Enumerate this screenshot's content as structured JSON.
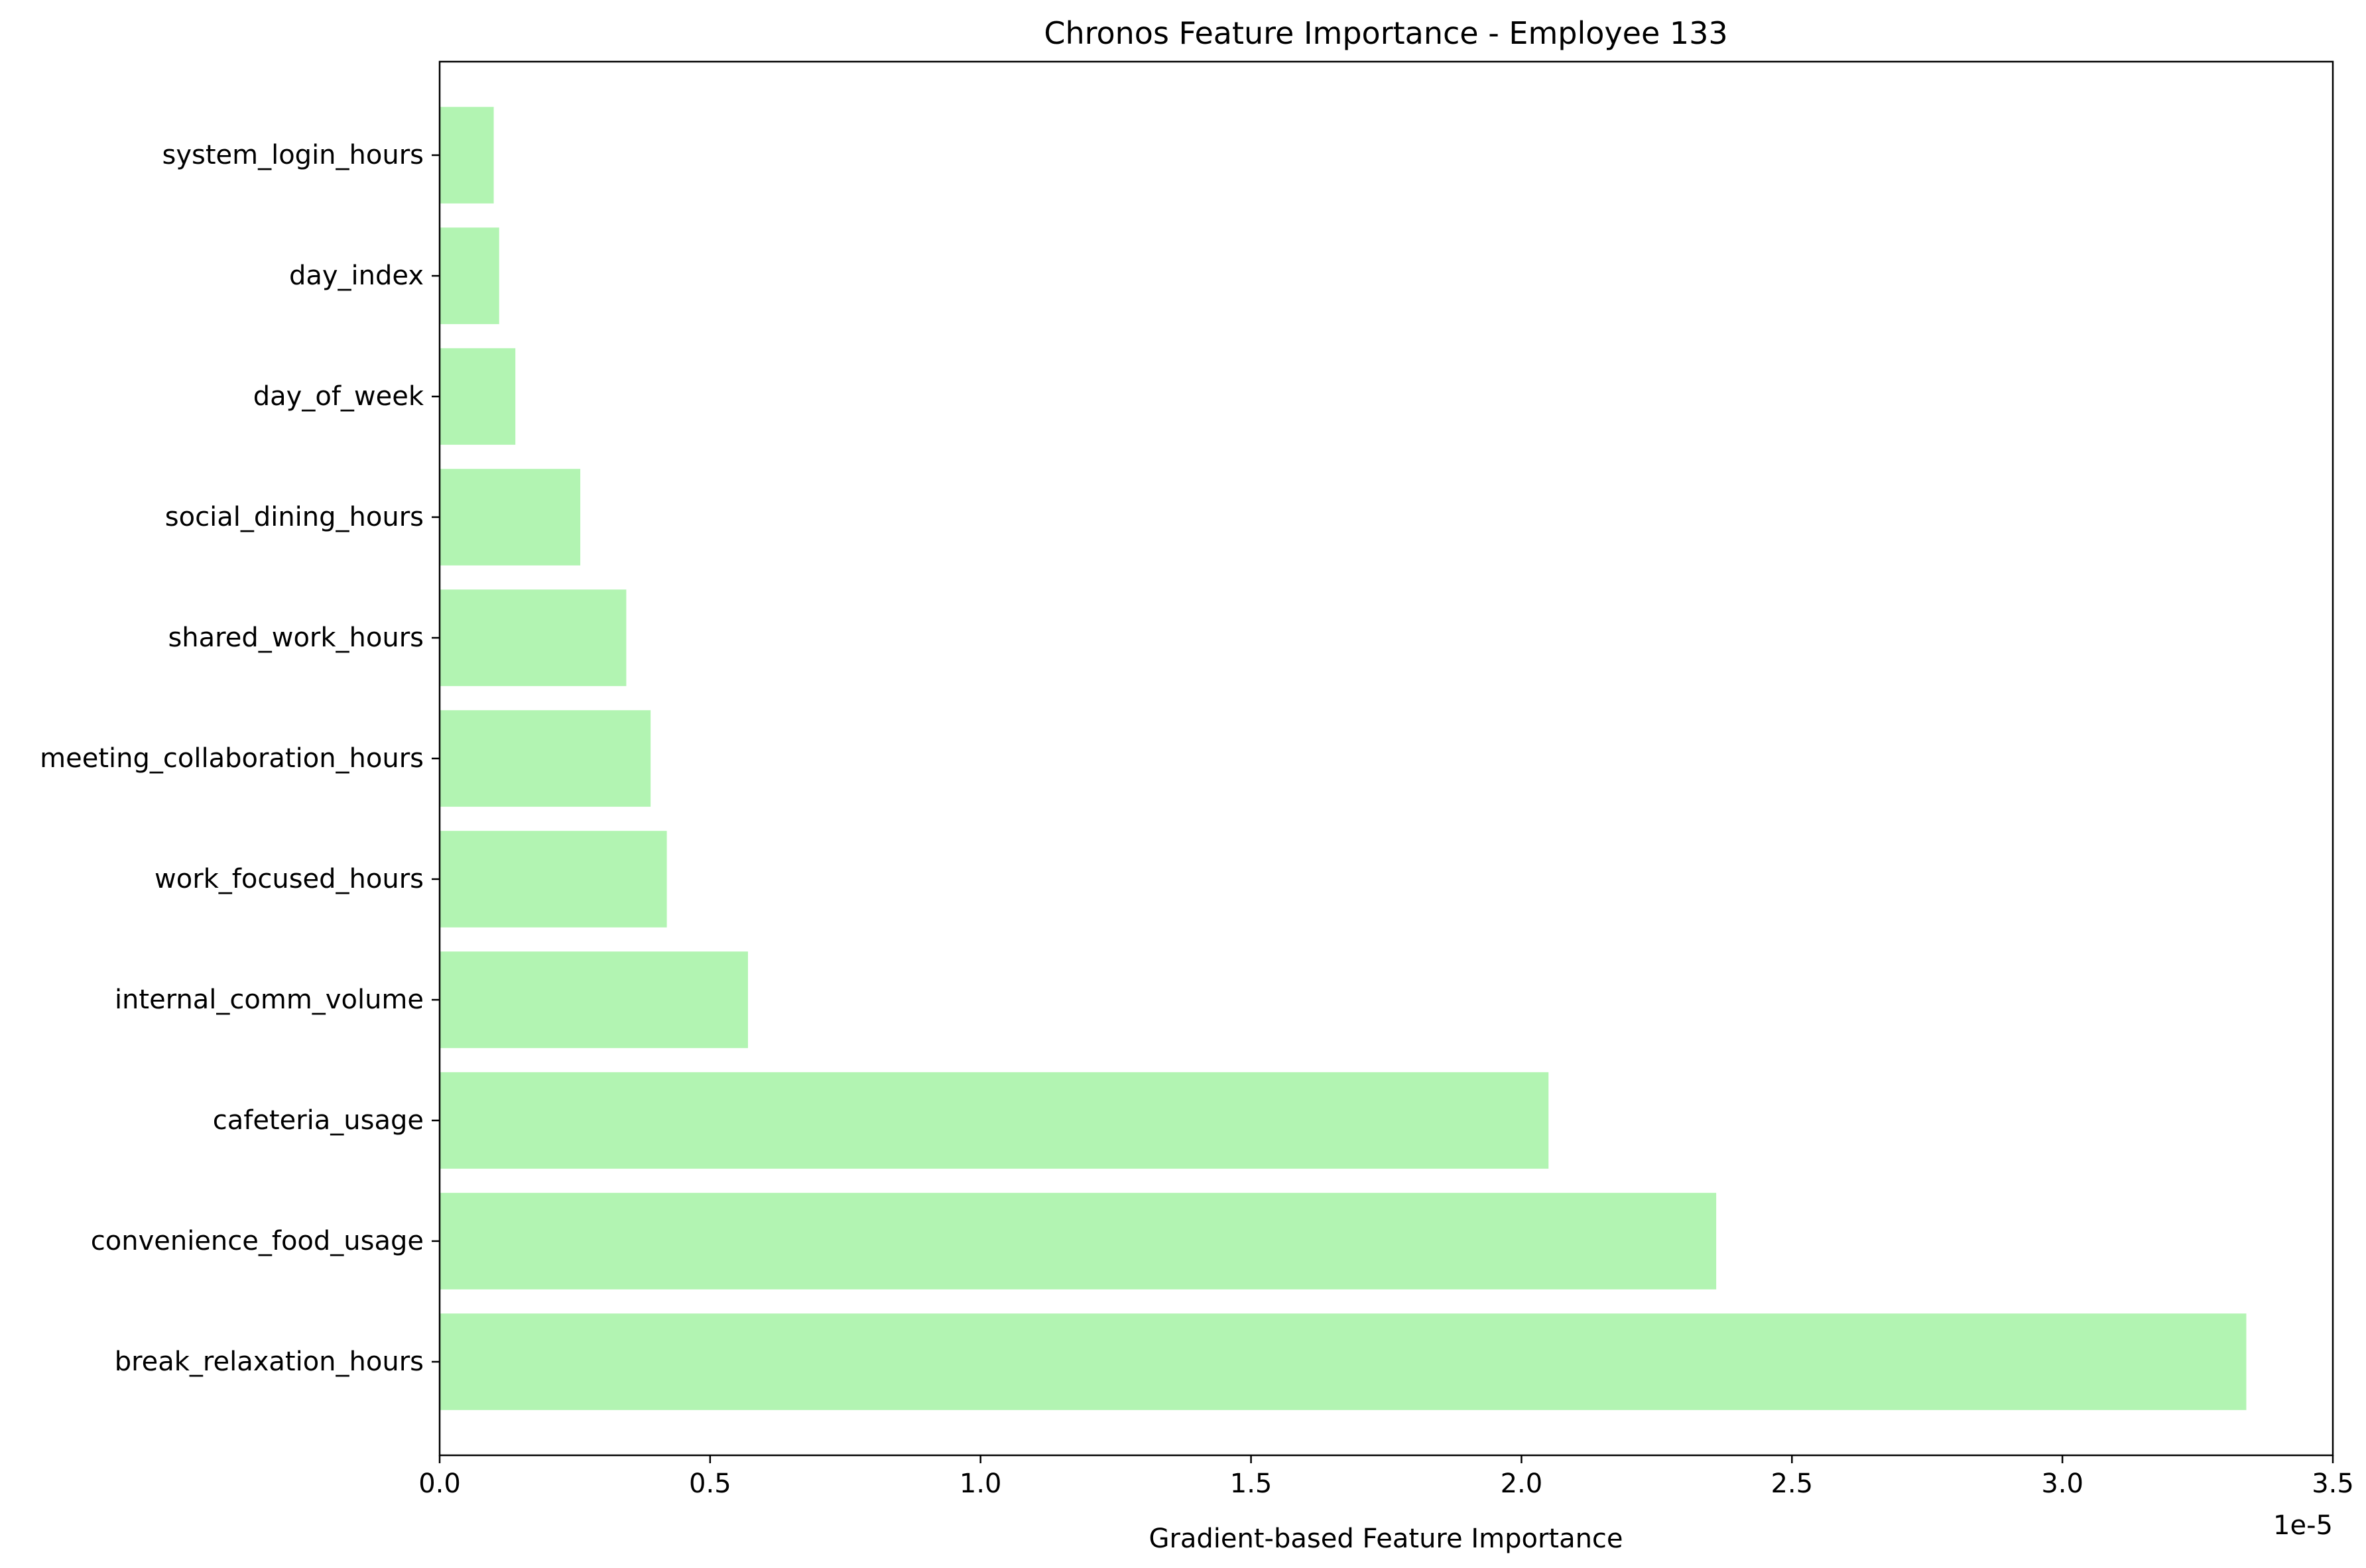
{
  "chart_data": {
    "type": "bar",
    "orientation": "horizontal",
    "title": "Chronos Feature Importance - Employee 133",
    "xlabel": "Gradient-based Feature Importance",
    "ylabel": "",
    "x_offset_label": "1e-5",
    "x_scale": 1e-05,
    "xlim": [
      0,
      3.5
    ],
    "xticks": [
      0.0,
      0.5,
      1.0,
      1.5,
      2.0,
      2.5,
      3.0,
      3.5
    ],
    "xtick_labels": [
      "0.0",
      "0.5",
      "1.0",
      "1.5",
      "2.0",
      "2.5",
      "3.0",
      "3.5"
    ],
    "categories": [
      "break_relaxation_hours",
      "convenience_food_usage",
      "cafeteria_usage",
      "internal_comm_volume",
      "work_focused_hours",
      "meeting_collaboration_hours",
      "shared_work_hours",
      "social_dining_hours",
      "day_of_week",
      "day_index",
      "system_login_hours"
    ],
    "values": [
      3.34,
      2.36,
      2.05,
      0.57,
      0.42,
      0.39,
      0.345,
      0.26,
      0.14,
      0.11,
      0.1
    ],
    "bar_color": "#b2f4b2",
    "grid": false,
    "legend": "none"
  }
}
